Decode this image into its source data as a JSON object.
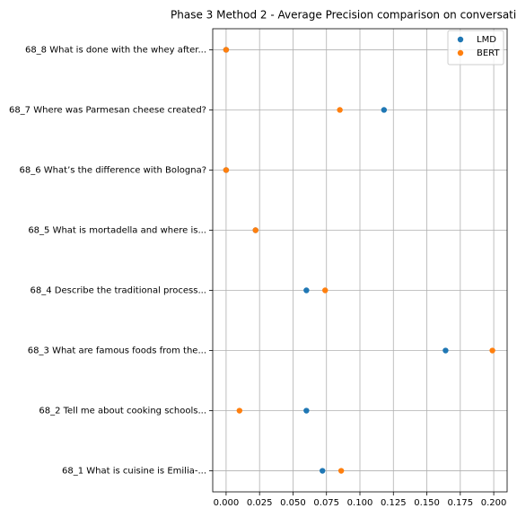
{
  "chart_data": {
    "type": "scatter",
    "title": "Phase 3 Method 2 - Average Precision comparison on conversati",
    "categories": [
      "68_1 What is cuisine is Emilia-...",
      "68_2 Tell me about cooking schools...",
      "68_3 What are famous foods from the...",
      "68_4 Describe the traditional process...",
      "68_5 What is mortadella and where is...",
      "68_6 What’s the difference with Bologna?",
      "68_7 Where was Parmesan cheese created?",
      "68_8 What is done with the whey after..."
    ],
    "series": [
      {
        "name": "LMD",
        "color": "#1f77b4",
        "values": [
          0.072,
          0.06,
          0.164,
          0.06,
          0.022,
          0.0,
          0.118,
          0.0
        ]
      },
      {
        "name": "BERT",
        "color": "#ff7f0e",
        "values": [
          0.086,
          0.01,
          0.199,
          0.074,
          0.022,
          0.0,
          0.085,
          0.0
        ]
      }
    ],
    "xlim": [
      -0.01,
      0.21
    ],
    "xticks": [
      {
        "value": 0,
        "label": "0.000"
      },
      {
        "value": 0.025,
        "label": "0.025"
      },
      {
        "value": 0.05,
        "label": "0.050"
      },
      {
        "value": 0.075,
        "label": "0.075"
      },
      {
        "value": 0.1,
        "label": "0.100"
      },
      {
        "value": 0.125,
        "label": "0.125"
      },
      {
        "value": 0.15,
        "label": "0.150"
      },
      {
        "value": 0.175,
        "label": "0.175"
      },
      {
        "value": 0.2,
        "label": "0.200"
      }
    ],
    "grid": true,
    "legend": "upper right"
  }
}
